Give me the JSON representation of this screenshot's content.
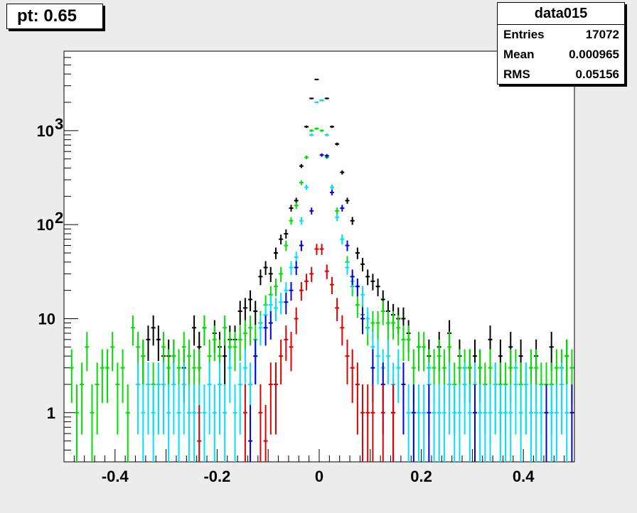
{
  "pad_label": "pt: 0.65",
  "stats": {
    "title": "data015",
    "rows": [
      {
        "key": "Entries",
        "value": "17072"
      },
      {
        "key": "Mean",
        "value": "0.000965"
      },
      {
        "key": "RMS",
        "value": "0.05156"
      }
    ]
  },
  "chart_data": {
    "type": "scatter",
    "title": "",
    "xlabel": "",
    "ylabel": "",
    "xlim": [
      -0.5,
      0.5
    ],
    "ylim": [
      0.3,
      7000
    ],
    "yscale": "log",
    "grid": false,
    "x_ticks": [
      {
        "v": -0.4,
        "label": "-0.4"
      },
      {
        "v": -0.2,
        "label": "-0.2"
      },
      {
        "v": 0,
        "label": "0"
      },
      {
        "v": 0.2,
        "label": "0.2"
      },
      {
        "v": 0.4,
        "label": "0.4"
      }
    ],
    "y_ticks": [
      {
        "v": 1,
        "label": "1"
      },
      {
        "v": 10,
        "label": "10"
      },
      {
        "v": 100,
        "label": "10",
        "sup": "2"
      },
      {
        "v": 1000,
        "label": "10",
        "sup": "3"
      }
    ],
    "series": [
      {
        "color": "#000000",
        "x": [
          -0.345,
          -0.335,
          -0.325,
          -0.315,
          -0.305,
          -0.295,
          -0.285,
          -0.265,
          -0.245,
          -0.235,
          -0.225,
          -0.205,
          -0.195,
          -0.185,
          -0.175,
          -0.165,
          -0.155,
          -0.145,
          -0.135,
          -0.125,
          -0.115,
          -0.105,
          -0.095,
          -0.085,
          -0.075,
          -0.065,
          -0.055,
          -0.045,
          -0.035,
          -0.025,
          -0.015,
          -0.005,
          0.005,
          0.015,
          0.025,
          0.035,
          0.045,
          0.055,
          0.065,
          0.075,
          0.085,
          0.095,
          0.105,
          0.115,
          0.125,
          0.135,
          0.145,
          0.155,
          0.165,
          0.175,
          0.195,
          0.215,
          0.235,
          0.255,
          0.275,
          0.295,
          0.305,
          0.315,
          0.335,
          0.355,
          0.375,
          0.395,
          0.425,
          0.455,
          0.485
        ],
        "y": [
          4,
          6,
          8,
          6,
          4,
          4,
          4,
          3,
          8,
          5,
          8,
          7,
          5,
          4,
          6,
          6,
          12,
          13,
          16,
          12,
          28,
          35,
          30,
          50,
          70,
          80,
          150,
          180,
          420,
          1100,
          2200,
          3500,
          2100,
          2200,
          1100,
          720,
          360,
          180,
          110,
          50,
          38,
          28,
          25,
          22,
          16,
          12,
          11,
          10,
          10,
          7,
          5,
          4,
          5,
          7,
          4,
          3,
          4,
          3,
          6,
          4,
          5,
          4,
          4,
          5,
          4
        ]
      },
      {
        "color": "#00e000",
        "x": [
          -0.485,
          -0.475,
          -0.465,
          -0.455,
          -0.445,
          -0.435,
          -0.425,
          -0.415,
          -0.405,
          -0.395,
          -0.385,
          -0.375,
          -0.365,
          -0.355,
          -0.345,
          -0.335,
          -0.325,
          -0.315,
          -0.305,
          -0.295,
          -0.285,
          -0.275,
          -0.265,
          -0.255,
          -0.245,
          -0.235,
          -0.225,
          -0.215,
          -0.205,
          -0.195,
          -0.185,
          -0.175,
          -0.165,
          -0.155,
          -0.145,
          -0.135,
          -0.125,
          -0.115,
          -0.105,
          -0.095,
          -0.085,
          -0.075,
          -0.065,
          -0.055,
          -0.045,
          -0.035,
          -0.025,
          -0.015,
          -0.005,
          0.005,
          0.015,
          0.025,
          0.035,
          0.045,
          0.055,
          0.065,
          0.075,
          0.085,
          0.095,
          0.105,
          0.115,
          0.125,
          0.135,
          0.145,
          0.155,
          0.165,
          0.175,
          0.185,
          0.195,
          0.205,
          0.215,
          0.225,
          0.235,
          0.245,
          0.255,
          0.265,
          0.275,
          0.285,
          0.295,
          0.305,
          0.315,
          0.325,
          0.335,
          0.345,
          0.355,
          0.365,
          0.375,
          0.385,
          0.395,
          0.405,
          0.415,
          0.425,
          0.435,
          0.445,
          0.455,
          0.465,
          0.475,
          0.485,
          0.495
        ],
        "y": [
          3,
          1,
          2,
          5,
          1,
          2,
          3,
          3,
          5,
          2,
          3,
          1,
          8,
          5,
          4,
          2,
          2,
          2,
          5,
          3,
          4,
          3,
          5,
          4,
          3,
          3,
          8,
          4,
          6,
          4,
          8,
          5,
          5,
          6,
          7,
          8,
          6,
          9,
          14,
          18,
          22,
          30,
          60,
          110,
          160,
          280,
          520,
          1000,
          1050,
          1000,
          520,
          250,
          140,
          70,
          40,
          22,
          14,
          11,
          8,
          9,
          9,
          12,
          9,
          9,
          8,
          6,
          6,
          3,
          5,
          5,
          3,
          3,
          4,
          3,
          5,
          2,
          3,
          3,
          3,
          2,
          3,
          2,
          3,
          2,
          2,
          2,
          3,
          3,
          2,
          2,
          3,
          3,
          2,
          2,
          2,
          3,
          3,
          4,
          3
        ]
      },
      {
        "color": "#00e0ff",
        "x": [
          -0.355,
          -0.345,
          -0.335,
          -0.325,
          -0.315,
          -0.305,
          -0.295,
          -0.285,
          -0.275,
          -0.265,
          -0.255,
          -0.245,
          -0.235,
          -0.225,
          -0.215,
          -0.205,
          -0.195,
          -0.185,
          -0.175,
          -0.165,
          -0.155,
          -0.145,
          -0.135,
          -0.125,
          -0.115,
          -0.105,
          -0.095,
          -0.085,
          -0.075,
          -0.065,
          -0.055,
          -0.045,
          -0.035,
          -0.025,
          -0.015,
          -0.005,
          0.005,
          0.015,
          0.025,
          0.035,
          0.045,
          0.055,
          0.065,
          0.075,
          0.085,
          0.095,
          0.105,
          0.115,
          0.125,
          0.135,
          0.145,
          0.155,
          0.165,
          0.175,
          0.185,
          0.195,
          0.205,
          0.215,
          0.225,
          0.235,
          0.245,
          0.255,
          0.265,
          0.275,
          0.285,
          0.295,
          0.305,
          0.315,
          0.325,
          0.335,
          0.345,
          0.355,
          0.365,
          0.375,
          0.385,
          0.395,
          0.405,
          0.415,
          0.425,
          0.435,
          0.445,
          0.455,
          0.465,
          0.475,
          0.485
        ],
        "y": [
          2,
          1,
          2,
          1,
          2,
          2,
          1,
          2,
          1,
          2,
          1,
          1,
          1,
          1,
          2,
          1,
          2,
          1,
          3,
          1,
          2,
          3,
          2,
          4,
          8,
          11,
          14,
          13,
          15,
          20,
          35,
          45,
          110,
          250,
          900,
          2000,
          2100,
          900,
          250,
          120,
          70,
          35,
          25,
          22,
          18,
          10,
          5,
          4,
          3,
          4,
          2,
          3,
          2,
          1,
          1,
          1,
          1,
          2,
          1,
          1,
          1,
          2,
          1,
          1,
          2,
          1,
          2,
          1,
          1,
          1,
          2,
          1,
          1,
          1,
          2,
          1,
          2,
          1,
          1,
          1,
          1,
          1,
          1,
          2,
          1
        ]
      },
      {
        "color": "#0000e0",
        "x": [
          -0.135,
          -0.125,
          -0.105,
          -0.095,
          -0.085,
          -0.065,
          -0.055,
          -0.045,
          -0.035,
          -0.015,
          0.005,
          0.015,
          0.025,
          0.045,
          0.055,
          0.065,
          0.075,
          0.085,
          0.105,
          0.125,
          0.145,
          0.165,
          0.185,
          0.215,
          0.305,
          0.445,
          0.495
        ],
        "y": [
          0.5,
          4,
          8,
          9,
          2,
          15,
          20,
          35,
          60,
          140,
          550,
          540,
          220,
          150,
          60,
          28,
          22,
          10,
          3,
          2,
          1,
          2,
          1,
          1,
          1,
          1,
          1
        ]
      },
      {
        "color": "#e00000",
        "x": [
          -0.235,
          -0.145,
          -0.115,
          -0.105,
          -0.095,
          -0.085,
          -0.075,
          -0.065,
          -0.055,
          -0.045,
          -0.035,
          -0.025,
          -0.015,
          -0.005,
          0.005,
          0.015,
          0.025,
          0.035,
          0.045,
          0.055,
          0.065,
          0.075,
          0.085,
          0.095,
          0.105,
          0.125,
          0.145
        ],
        "y": [
          0.5,
          1,
          1,
          0.5,
          2,
          2,
          4,
          6,
          5,
          10,
          20,
          25,
          30,
          55,
          55,
          32,
          23,
          13,
          8,
          4,
          3,
          2,
          1,
          1,
          1,
          1,
          1
        ]
      }
    ]
  }
}
